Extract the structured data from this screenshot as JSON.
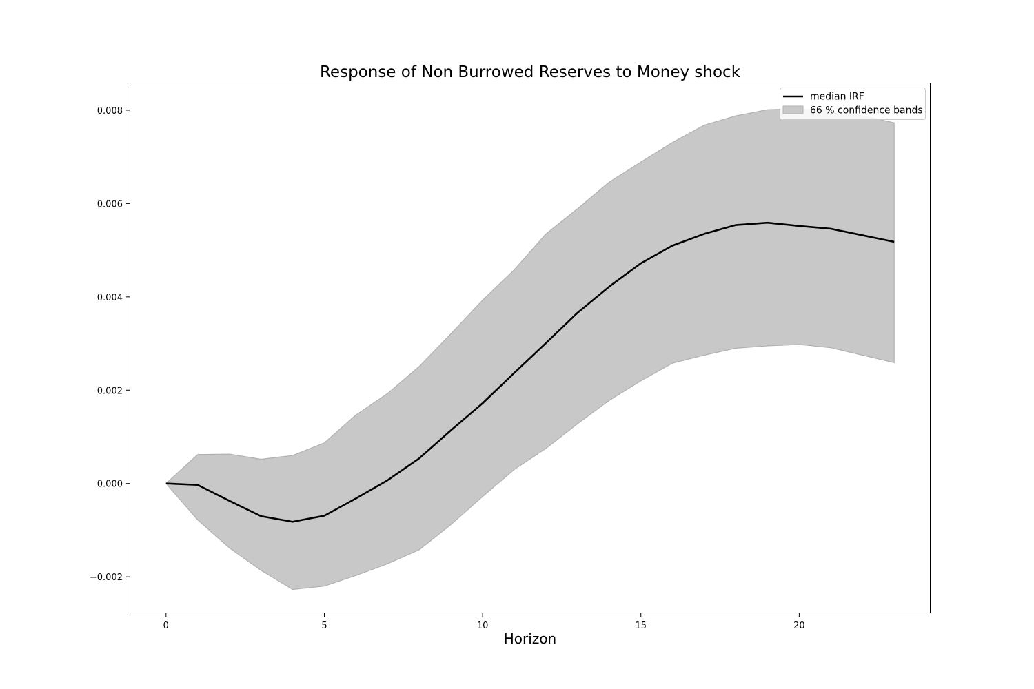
{
  "chart_data": {
    "type": "line",
    "title": "Response of Non Burrowed Reserves to Money shock",
    "xlabel": "Horizon",
    "ylabel": "",
    "xlim": [
      -1.15,
      24.15
    ],
    "ylim": [
      -0.00278,
      0.00859
    ],
    "x_ticks": [
      0,
      5,
      10,
      15,
      20
    ],
    "y_ticks": [
      -0.002,
      0.0,
      0.002,
      0.004,
      0.006,
      0.008
    ],
    "x_tick_labels": [
      "0",
      "5",
      "10",
      "15",
      "20"
    ],
    "y_tick_labels": [
      "−0.002",
      "0.000",
      "0.002",
      "0.004",
      "0.006",
      "0.008"
    ],
    "grid": false,
    "legend_position": "top-right",
    "x": [
      0,
      1,
      2,
      3,
      4,
      5,
      6,
      7,
      8,
      9,
      10,
      11,
      12,
      13,
      14,
      15,
      16,
      17,
      18,
      19,
      20,
      21,
      22,
      23
    ],
    "series": [
      {
        "name": "median IRF",
        "type": "line",
        "color": "#000000",
        "values": [
          0.0,
          -3e-05,
          -0.00037,
          -0.0007,
          -0.00082,
          -0.00069,
          -0.00032,
          7e-05,
          0.00054,
          0.00114,
          0.00172,
          0.00237,
          0.00301,
          0.00366,
          0.00422,
          0.00472,
          0.0051,
          0.00535,
          0.00554,
          0.00559,
          0.00552,
          0.00546,
          0.00532,
          0.00518
        ]
      },
      {
        "name": "66 % confidence bands",
        "type": "band",
        "color": "#c8c8c8",
        "lower": [
          0.0,
          -0.00078,
          -0.00138,
          -0.00186,
          -0.00227,
          -0.0022,
          -0.00197,
          -0.00172,
          -0.00142,
          -0.00088,
          -0.00028,
          0.0003,
          0.00075,
          0.00128,
          0.00178,
          0.0022,
          0.00258,
          0.00275,
          0.0029,
          0.00295,
          0.00298,
          0.00291,
          0.00275,
          0.00259
        ],
        "upper": [
          0.0,
          0.00062,
          0.00063,
          0.00052,
          0.0006,
          0.00087,
          0.00147,
          0.00193,
          0.00251,
          0.00321,
          0.00393,
          0.00458,
          0.00535,
          0.00589,
          0.00646,
          0.00689,
          0.00731,
          0.00768,
          0.00788,
          0.00801,
          0.00803,
          0.00798,
          0.00788,
          0.00773
        ]
      }
    ]
  }
}
